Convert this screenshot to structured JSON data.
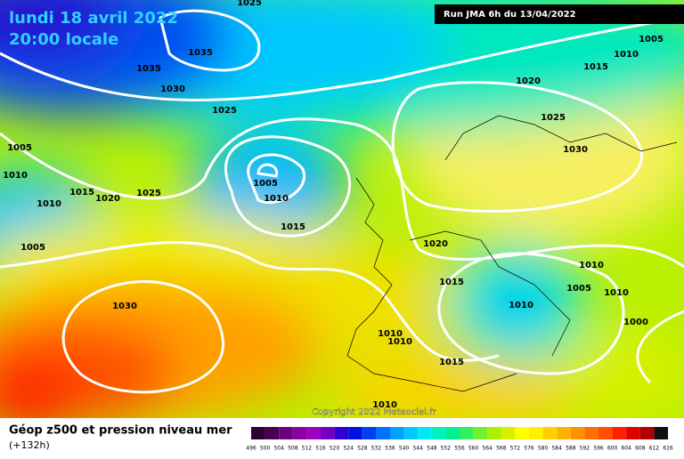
{
  "header": {
    "date": "lundi 18 avril 2022",
    "time": "20:00 locale",
    "run": "Run JMA 6h du 13/04/2022"
  },
  "isobar_labels": [
    "1025",
    "1035",
    "1035",
    "1030",
    "1025",
    "1005",
    "1010",
    "1015",
    "1020",
    "1025",
    "1010",
    "1005",
    "1005",
    "1010",
    "1015",
    "1030",
    "1005",
    "1010",
    "1015",
    "1020",
    "1025",
    "1030",
    "1020",
    "1015",
    "1010",
    "1005",
    "1010",
    "1010",
    "1000",
    "1010",
    "1010",
    "1015",
    "1010"
  ],
  "copyright": "Copyright 2022 Meteociel.fr",
  "footer": {
    "title": "Géop z500 et pression niveau mer",
    "lead": "(+132h)"
  },
  "legend": {
    "scale": [
      496,
      500,
      504,
      508,
      512,
      516,
      520,
      524,
      528,
      532,
      536,
      540,
      544,
      548,
      552,
      556,
      560,
      564,
      568,
      572,
      576,
      580,
      584,
      588,
      592,
      596,
      600,
      604,
      608,
      612,
      616
    ],
    "colors": [
      "#2a0030",
      "#4a0050",
      "#6a0080",
      "#8a00a0",
      "#a000c0",
      "#7000c0",
      "#3000d0",
      "#0010e0",
      "#0040f0",
      "#0070ff",
      "#00a0ff",
      "#00c8ff",
      "#00e8f0",
      "#00f0c0",
      "#00f090",
      "#30f060",
      "#70f030",
      "#a8f000",
      "#d8f000",
      "#ffff00",
      "#fff000",
      "#ffd000",
      "#ffb000",
      "#ff9000",
      "#ff7000",
      "#ff5000",
      "#ff2000",
      "#e00000",
      "#b00000",
      "#101010"
    ]
  }
}
